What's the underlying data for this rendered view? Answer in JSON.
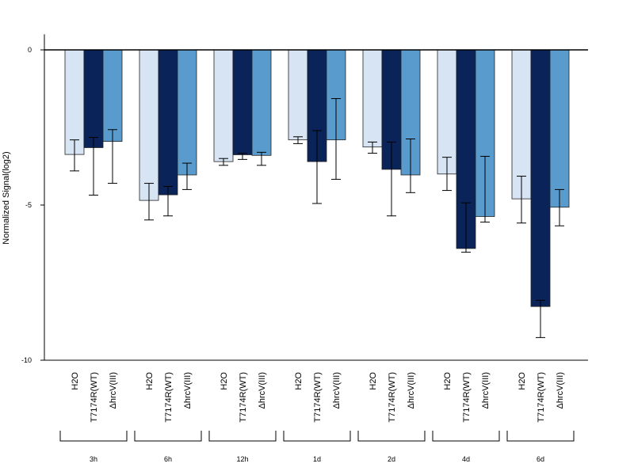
{
  "chart_data": {
    "type": "bar",
    "ylabel": "Normalized Signal(log2)",
    "ylim": [
      -10,
      0.5
    ],
    "yticks": [
      0,
      -5,
      -10
    ],
    "ytick_labels": [
      "0",
      "-5",
      "-10"
    ],
    "grid": false,
    "legend": "none",
    "groups": [
      "3h",
      "6h",
      "12h",
      "1d",
      "2d",
      "4d",
      "6d"
    ],
    "conditions": [
      "H2O",
      "T7174R(WT)",
      "ΔhrcV(III)"
    ],
    "series": [
      {
        "name": "H2O",
        "color": "#d6e4f3",
        "values": [
          -3.37,
          -4.85,
          -3.6,
          -2.9,
          -3.13,
          -4.0,
          -4.8
        ],
        "error_low": [
          -3.9,
          -5.48,
          -3.72,
          -3.02,
          -3.33,
          -4.53,
          -5.58
        ],
        "error_high": [
          -2.9,
          -4.3,
          -3.5,
          -2.8,
          -2.97,
          -3.46,
          -4.07
        ]
      },
      {
        "name": "T7174R(WT)",
        "color": "#0a2358",
        "values": [
          -3.15,
          -4.67,
          -3.38,
          -3.6,
          -3.85,
          -6.4,
          -8.27
        ],
        "error_low": [
          -4.68,
          -5.35,
          -3.53,
          -4.95,
          -5.35,
          -6.52,
          -9.27
        ],
        "error_high": [
          -2.82,
          -4.4,
          -3.33,
          -2.6,
          -2.97,
          -4.93,
          -8.07
        ]
      },
      {
        "name": "ΔhrcV(III)",
        "color": "#5a9bcd",
        "values": [
          -2.95,
          -4.03,
          -3.4,
          -2.9,
          -4.03,
          -5.37,
          -5.07
        ],
        "error_low": [
          -4.3,
          -4.5,
          -3.72,
          -4.17,
          -4.6,
          -5.55,
          -5.67
        ],
        "error_high": [
          -2.57,
          -3.65,
          -3.3,
          -1.57,
          -2.87,
          -3.43,
          -4.5
        ]
      }
    ]
  }
}
